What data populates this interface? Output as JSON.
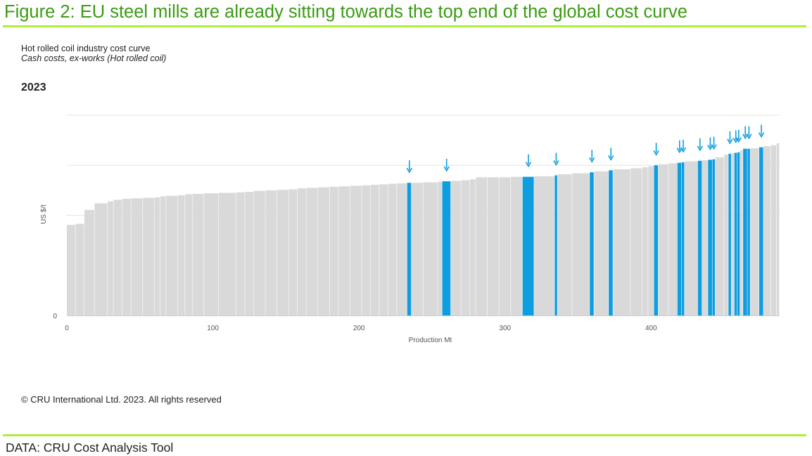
{
  "figure_title": "Figure 2: EU steel mills are already sitting towards the top end of the global cost curve",
  "source": "DATA: CRU Cost Analysis Tool",
  "copyright": "© CRU International Ltd. 2023. All rights reserved",
  "colors": {
    "title_green": "#3c9a14",
    "rule_green": "#b0ec3a",
    "bar_grey": "#d9d9d9",
    "bar_eu": "#0e9ee0",
    "arrow": "#0e9ee0"
  },
  "chart_data": {
    "type": "bar",
    "subtype": "cost-curve",
    "title": "Hot rolled coil industry cost curve",
    "subtitle": "Cash costs, ex-works (Hot rolled coil)",
    "year_label": "2023",
    "xlabel": "Production Mt",
    "ylabel": "US $/t",
    "xlim": [
      0,
      488
    ],
    "ylim": [
      0,
      40
    ],
    "x_ticks": [
      "0",
      "100",
      "200",
      "300",
      "400"
    ],
    "y_ticks": [
      "0"
    ],
    "grid": "horizontal",
    "legend": "none",
    "annotation": "Arrows mark EU steel mills (blue bars)",
    "series": [
      {
        "values": [
          {
            "x0": 0,
            "x1": 6,
            "y": 18.1,
            "eu": false
          },
          {
            "x0": 6,
            "x1": 12,
            "y": 18.3,
            "eu": false
          },
          {
            "x0": 12,
            "x1": 19,
            "y": 21.1,
            "eu": false
          },
          {
            "x0": 19,
            "x1": 28,
            "y": 22.4,
            "eu": false
          },
          {
            "x0": 28,
            "x1": 32,
            "y": 22.8,
            "eu": false
          },
          {
            "x0": 32,
            "x1": 38,
            "y": 23.1,
            "eu": false
          },
          {
            "x0": 38,
            "x1": 44,
            "y": 23.3,
            "eu": false
          },
          {
            "x0": 44,
            "x1": 52,
            "y": 23.4,
            "eu": false
          },
          {
            "x0": 52,
            "x1": 60,
            "y": 23.5,
            "eu": false
          },
          {
            "x0": 60,
            "x1": 64,
            "y": 23.6,
            "eu": false
          },
          {
            "x0": 64,
            "x1": 68,
            "y": 23.8,
            "eu": false
          },
          {
            "x0": 68,
            "x1": 76,
            "y": 23.9,
            "eu": false
          },
          {
            "x0": 76,
            "x1": 81,
            "y": 24.0,
            "eu": false
          },
          {
            "x0": 81,
            "x1": 86,
            "y": 24.2,
            "eu": false
          },
          {
            "x0": 86,
            "x1": 94,
            "y": 24.3,
            "eu": false
          },
          {
            "x0": 94,
            "x1": 104,
            "y": 24.4,
            "eu": false
          },
          {
            "x0": 104,
            "x1": 116,
            "y": 24.5,
            "eu": false
          },
          {
            "x0": 116,
            "x1": 122,
            "y": 24.6,
            "eu": false
          },
          {
            "x0": 122,
            "x1": 128,
            "y": 24.7,
            "eu": false
          },
          {
            "x0": 128,
            "x1": 136,
            "y": 24.9,
            "eu": false
          },
          {
            "x0": 136,
            "x1": 144,
            "y": 25.0,
            "eu": false
          },
          {
            "x0": 144,
            "x1": 152,
            "y": 25.1,
            "eu": false
          },
          {
            "x0": 152,
            "x1": 158,
            "y": 25.2,
            "eu": false
          },
          {
            "x0": 158,
            "x1": 164,
            "y": 25.4,
            "eu": false
          },
          {
            "x0": 164,
            "x1": 172,
            "y": 25.5,
            "eu": false
          },
          {
            "x0": 172,
            "x1": 180,
            "y": 25.6,
            "eu": false
          },
          {
            "x0": 180,
            "x1": 186,
            "y": 25.7,
            "eu": false
          },
          {
            "x0": 186,
            "x1": 194,
            "y": 25.8,
            "eu": false
          },
          {
            "x0": 194,
            "x1": 202,
            "y": 25.9,
            "eu": false
          },
          {
            "x0": 202,
            "x1": 208,
            "y": 26.0,
            "eu": false
          },
          {
            "x0": 208,
            "x1": 214,
            "y": 26.1,
            "eu": false
          },
          {
            "x0": 214,
            "x1": 220,
            "y": 26.2,
            "eu": false
          },
          {
            "x0": 220,
            "x1": 226,
            "y": 26.3,
            "eu": false
          },
          {
            "x0": 226,
            "x1": 233,
            "y": 26.4,
            "eu": false
          },
          {
            "x0": 233,
            "x1": 236,
            "y": 26.5,
            "eu": true
          },
          {
            "x0": 236,
            "x1": 244,
            "y": 26.5,
            "eu": false
          },
          {
            "x0": 244,
            "x1": 254,
            "y": 26.6,
            "eu": false
          },
          {
            "x0": 254,
            "x1": 257,
            "y": 26.7,
            "eu": false
          },
          {
            "x0": 257,
            "x1": 263,
            "y": 26.8,
            "eu": true
          },
          {
            "x0": 263,
            "x1": 270,
            "y": 26.9,
            "eu": false
          },
          {
            "x0": 270,
            "x1": 276,
            "y": 27.0,
            "eu": false
          },
          {
            "x0": 276,
            "x1": 280,
            "y": 27.2,
            "eu": false
          },
          {
            "x0": 280,
            "x1": 288,
            "y": 27.6,
            "eu": false
          },
          {
            "x0": 288,
            "x1": 296,
            "y": 27.6,
            "eu": false
          },
          {
            "x0": 296,
            "x1": 304,
            "y": 27.6,
            "eu": false
          },
          {
            "x0": 304,
            "x1": 312,
            "y": 27.7,
            "eu": false
          },
          {
            "x0": 312,
            "x1": 320,
            "y": 27.7,
            "eu": true
          },
          {
            "x0": 320,
            "x1": 334,
            "y": 27.8,
            "eu": false
          },
          {
            "x0": 334,
            "x1": 336,
            "y": 28.0,
            "eu": true
          },
          {
            "x0": 336,
            "x1": 346,
            "y": 28.2,
            "eu": false
          },
          {
            "x0": 346,
            "x1": 358,
            "y": 28.4,
            "eu": false
          },
          {
            "x0": 358,
            "x1": 361,
            "y": 28.6,
            "eu": true
          },
          {
            "x0": 361,
            "x1": 371,
            "y": 28.8,
            "eu": false
          },
          {
            "x0": 371,
            "x1": 374,
            "y": 29.0,
            "eu": true
          },
          {
            "x0": 374,
            "x1": 386,
            "y": 29.2,
            "eu": false
          },
          {
            "x0": 386,
            "x1": 394,
            "y": 29.4,
            "eu": false
          },
          {
            "x0": 394,
            "x1": 398,
            "y": 29.6,
            "eu": false
          },
          {
            "x0": 398,
            "x1": 402,
            "y": 29.8,
            "eu": false
          },
          {
            "x0": 402,
            "x1": 405,
            "y": 30.0,
            "eu": true
          },
          {
            "x0": 405,
            "x1": 412,
            "y": 30.2,
            "eu": false
          },
          {
            "x0": 412,
            "x1": 418,
            "y": 30.4,
            "eu": false
          },
          {
            "x0": 418,
            "x1": 421,
            "y": 30.5,
            "eu": true
          },
          {
            "x0": 421,
            "x1": 423,
            "y": 30.6,
            "eu": true
          },
          {
            "x0": 423,
            "x1": 432,
            "y": 30.8,
            "eu": false
          },
          {
            "x0": 432,
            "x1": 435,
            "y": 30.9,
            "eu": true
          },
          {
            "x0": 435,
            "x1": 439,
            "y": 31.0,
            "eu": false
          },
          {
            "x0": 439,
            "x1": 442,
            "y": 31.1,
            "eu": true
          },
          {
            "x0": 442,
            "x1": 444,
            "y": 31.2,
            "eu": true
          },
          {
            "x0": 444,
            "x1": 450,
            "y": 31.6,
            "eu": false
          },
          {
            "x0": 450,
            "x1": 453,
            "y": 32.1,
            "eu": false
          },
          {
            "x0": 453,
            "x1": 455,
            "y": 32.3,
            "eu": true
          },
          {
            "x0": 455,
            "x1": 457,
            "y": 32.4,
            "eu": false
          },
          {
            "x0": 457,
            "x1": 459,
            "y": 32.5,
            "eu": true
          },
          {
            "x0": 459,
            "x1": 461,
            "y": 32.6,
            "eu": true
          },
          {
            "x0": 461,
            "x1": 463,
            "y": 33.0,
            "eu": false
          },
          {
            "x0": 463,
            "x1": 466,
            "y": 33.3,
            "eu": true
          },
          {
            "x0": 466,
            "x1": 468,
            "y": 33.3,
            "eu": true
          },
          {
            "x0": 468,
            "x1": 474,
            "y": 33.4,
            "eu": false
          },
          {
            "x0": 474,
            "x1": 477,
            "y": 33.6,
            "eu": true
          },
          {
            "x0": 477,
            "x1": 482,
            "y": 33.8,
            "eu": false
          },
          {
            "x0": 482,
            "x1": 486,
            "y": 34.0,
            "eu": false
          },
          {
            "x0": 486,
            "x1": 488,
            "y": 34.4,
            "eu": false
          }
        ]
      }
    ]
  }
}
